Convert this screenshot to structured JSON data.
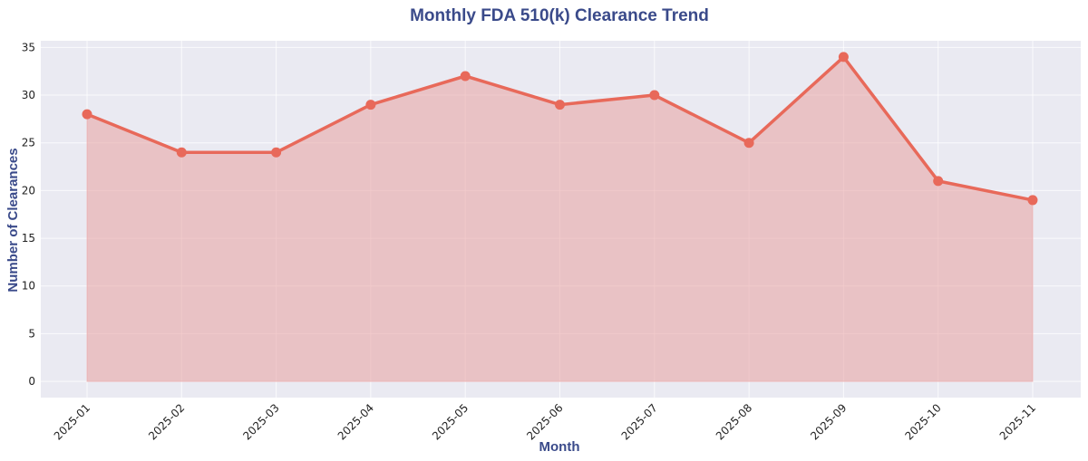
{
  "chart_data": {
    "type": "area",
    "title": "Monthly FDA 510(k) Clearance Trend",
    "xlabel": "Month",
    "ylabel": "Number of Clearances",
    "categories": [
      "2025-01",
      "2025-02",
      "2025-03",
      "2025-04",
      "2025-05",
      "2025-06",
      "2025-07",
      "2025-08",
      "2025-09",
      "2025-10",
      "2025-11"
    ],
    "values": [
      28,
      24,
      24,
      29,
      32,
      29,
      30,
      25,
      34,
      21,
      19
    ],
    "ylim": [
      -1.7,
      35.7
    ],
    "yticks": [
      0,
      5,
      10,
      15,
      20,
      25,
      30,
      35
    ],
    "grid": true,
    "legend": "none",
    "colors": {
      "line": "#e8695a",
      "fill": "#e8a0a0",
      "plot_bg": "#eaeaf2",
      "grid": "#ffffff",
      "text_accent": "#3a4a8a"
    }
  }
}
